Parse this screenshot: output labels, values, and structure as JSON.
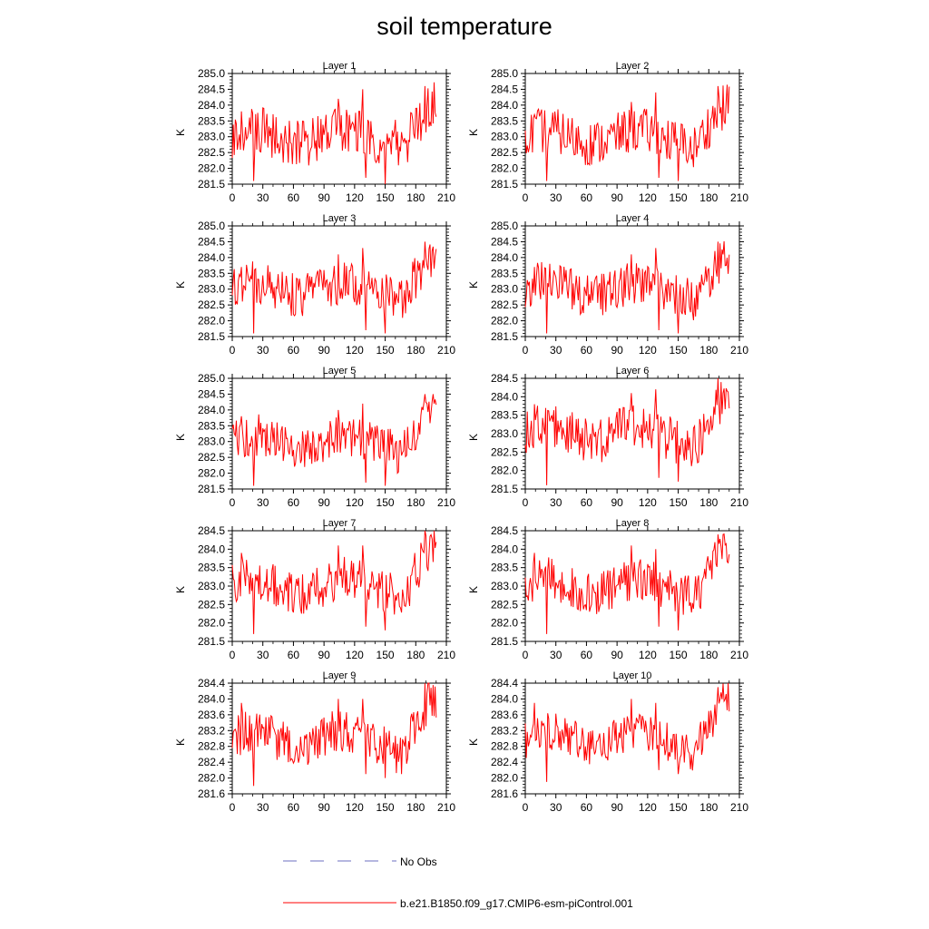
{
  "title": "soil temperature",
  "chart_data": [
    {
      "type": "line",
      "title": "Layer 1",
      "ylabel": "K",
      "xlim": [
        0,
        210
      ],
      "ylim": [
        281.5,
        285.0
      ],
      "xticks": [
        "0",
        "30",
        "60",
        "90",
        "120",
        "150",
        "180",
        "210"
      ],
      "yticks": [
        "281.5",
        "282.0",
        "282.5",
        "283.0",
        "283.5",
        "284.0",
        "284.5",
        "285.0"
      ],
      "series": [
        {
          "name": "b.e21.B1850.f09_g17.CMIP6-esm-piControl.001",
          "base": 283.0,
          "amp": 0.75,
          "spikes": [
            [
              9,
              283.8
            ],
            [
              21,
              281.6
            ],
            [
              104,
              284.2
            ],
            [
              128,
              284.5
            ],
            [
              131,
              281.7
            ],
            [
              150,
              281.5
            ],
            [
              189,
              284.6
            ]
          ]
        }
      ]
    },
    {
      "type": "line",
      "title": "Layer 2",
      "ylabel": "K",
      "xlim": [
        0,
        210
      ],
      "ylim": [
        281.5,
        285.0
      ],
      "xticks": [
        "0",
        "30",
        "60",
        "90",
        "120",
        "150",
        "180",
        "210"
      ],
      "yticks": [
        "281.5",
        "282.0",
        "282.5",
        "283.0",
        "283.5",
        "284.0",
        "284.5",
        "285.0"
      ],
      "series": [
        {
          "name": "b.e21.B1850.f09_g17.CMIP6-esm-piControl.001",
          "base": 283.0,
          "amp": 0.72,
          "spikes": [
            [
              9,
              283.7
            ],
            [
              21,
              281.6
            ],
            [
              104,
              284.1
            ],
            [
              128,
              284.4
            ],
            [
              131,
              281.7
            ],
            [
              150,
              281.6
            ],
            [
              189,
              284.6
            ]
          ]
        }
      ]
    },
    {
      "type": "line",
      "title": "Layer 3",
      "ylabel": "K",
      "xlim": [
        0,
        210
      ],
      "ylim": [
        281.5,
        285.0
      ],
      "xticks": [
        "0",
        "30",
        "60",
        "90",
        "120",
        "150",
        "180",
        "210"
      ],
      "yticks": [
        "281.5",
        "282.0",
        "282.5",
        "283.0",
        "283.5",
        "284.0",
        "284.5",
        "285.0"
      ],
      "series": [
        {
          "name": "b.e21.B1850.f09_g17.CMIP6-esm-piControl.001",
          "base": 283.0,
          "amp": 0.7,
          "spikes": [
            [
              9,
              283.7
            ],
            [
              21,
              281.6
            ],
            [
              104,
              284.1
            ],
            [
              128,
              284.3
            ],
            [
              131,
              281.7
            ],
            [
              150,
              281.6
            ],
            [
              189,
              284.5
            ]
          ]
        }
      ]
    },
    {
      "type": "line",
      "title": "Layer 4",
      "ylabel": "K",
      "xlim": [
        0,
        210
      ],
      "ylim": [
        281.5,
        285.0
      ],
      "xticks": [
        "0",
        "30",
        "60",
        "90",
        "120",
        "150",
        "180",
        "210"
      ],
      "yticks": [
        "281.5",
        "282.0",
        "282.5",
        "283.0",
        "283.5",
        "284.0",
        "284.5",
        "285.0"
      ],
      "series": [
        {
          "name": "b.e21.B1850.f09_g17.CMIP6-esm-piControl.001",
          "base": 283.0,
          "amp": 0.68,
          "spikes": [
            [
              9,
              283.7
            ],
            [
              21,
              281.6
            ],
            [
              104,
              284.1
            ],
            [
              128,
              284.3
            ],
            [
              131,
              281.7
            ],
            [
              150,
              281.6
            ],
            [
              189,
              284.5
            ]
          ]
        }
      ]
    },
    {
      "type": "line",
      "title": "Layer 5",
      "ylabel": "K",
      "xlim": [
        0,
        210
      ],
      "ylim": [
        281.5,
        285.0
      ],
      "xticks": [
        "0",
        "30",
        "60",
        "90",
        "120",
        "150",
        "180",
        "210"
      ],
      "yticks": [
        "281.5",
        "282.0",
        "282.5",
        "283.0",
        "283.5",
        "284.0",
        "284.5",
        "285.0"
      ],
      "series": [
        {
          "name": "b.e21.B1850.f09_g17.CMIP6-esm-piControl.001",
          "base": 283.0,
          "amp": 0.66,
          "spikes": [
            [
              9,
              283.8
            ],
            [
              21,
              281.6
            ],
            [
              104,
              284.0
            ],
            [
              128,
              284.2
            ],
            [
              131,
              281.7
            ],
            [
              150,
              281.6
            ],
            [
              189,
              284.5
            ]
          ]
        }
      ]
    },
    {
      "type": "line",
      "title": "Layer 6",
      "ylabel": "K",
      "xlim": [
        0,
        210
      ],
      "ylim": [
        281.5,
        284.5
      ],
      "xticks": [
        "0",
        "30",
        "60",
        "90",
        "120",
        "150",
        "180",
        "210"
      ],
      "yticks": [
        "281.5",
        "282.0",
        "282.5",
        "283.0",
        "283.5",
        "284.0",
        "284.5"
      ],
      "series": [
        {
          "name": "b.e21.B1850.f09_g17.CMIP6-esm-piControl.001",
          "base": 283.0,
          "amp": 0.62,
          "spikes": [
            [
              9,
              283.8
            ],
            [
              21,
              281.6
            ],
            [
              104,
              284.1
            ],
            [
              128,
              284.2
            ],
            [
              131,
              281.8
            ],
            [
              150,
              281.7
            ],
            [
              189,
              284.5
            ]
          ]
        }
      ]
    },
    {
      "type": "line",
      "title": "Layer 7",
      "ylabel": "K",
      "xlim": [
        0,
        210
      ],
      "ylim": [
        281.5,
        284.5
      ],
      "xticks": [
        "0",
        "30",
        "60",
        "90",
        "120",
        "150",
        "180",
        "210"
      ],
      "yticks": [
        "281.5",
        "282.0",
        "282.5",
        "283.0",
        "283.5",
        "284.0",
        "284.5"
      ],
      "series": [
        {
          "name": "b.e21.B1850.f09_g17.CMIP6-esm-piControl.001",
          "base": 283.0,
          "amp": 0.6,
          "spikes": [
            [
              9,
              283.9
            ],
            [
              21,
              281.7
            ],
            [
              104,
              284.1
            ],
            [
              128,
              284.1
            ],
            [
              131,
              281.9
            ],
            [
              150,
              281.8
            ],
            [
              189,
              284.5
            ]
          ]
        }
      ]
    },
    {
      "type": "line",
      "title": "Layer 8",
      "ylabel": "K",
      "xlim": [
        0,
        210
      ],
      "ylim": [
        281.5,
        284.5
      ],
      "xticks": [
        "0",
        "30",
        "60",
        "90",
        "120",
        "150",
        "180",
        "210"
      ],
      "yticks": [
        "281.5",
        "282.0",
        "282.5",
        "283.0",
        "283.5",
        "284.0",
        "284.5"
      ],
      "series": [
        {
          "name": "b.e21.B1850.f09_g17.CMIP6-esm-piControl.001",
          "base": 283.0,
          "amp": 0.58,
          "spikes": [
            [
              9,
              283.9
            ],
            [
              21,
              281.7
            ],
            [
              104,
              284.1
            ],
            [
              128,
              284.0
            ],
            [
              131,
              281.9
            ],
            [
              150,
              281.8
            ],
            [
              189,
              284.4
            ]
          ]
        }
      ]
    },
    {
      "type": "line",
      "title": "Layer 9",
      "ylabel": "K",
      "xlim": [
        0,
        210
      ],
      "ylim": [
        281.6,
        284.4
      ],
      "xticks": [
        "0",
        "30",
        "60",
        "90",
        "120",
        "150",
        "180",
        "210"
      ],
      "yticks": [
        "281.6",
        "282.0",
        "282.4",
        "282.8",
        "283.2",
        "283.6",
        "284.0",
        "284.4"
      ],
      "series": [
        {
          "name": "b.e21.B1850.f09_g17.CMIP6-esm-piControl.001",
          "base": 283.0,
          "amp": 0.55,
          "spikes": [
            [
              9,
              283.9
            ],
            [
              21,
              281.8
            ],
            [
              104,
              284.0
            ],
            [
              128,
              284.0
            ],
            [
              131,
              282.1
            ],
            [
              150,
              282.0
            ],
            [
              189,
              284.4
            ]
          ]
        }
      ]
    },
    {
      "type": "line",
      "title": "Layer 10",
      "ylabel": "K",
      "xlim": [
        0,
        210
      ],
      "ylim": [
        281.6,
        284.4
      ],
      "xticks": [
        "0",
        "30",
        "60",
        "90",
        "120",
        "150",
        "180",
        "210"
      ],
      "yticks": [
        "281.6",
        "282.0",
        "282.4",
        "282.8",
        "283.2",
        "283.6",
        "284.0",
        "284.4"
      ],
      "series": [
        {
          "name": "b.e21.B1850.f09_g17.CMIP6-esm-piControl.001",
          "base": 283.0,
          "amp": 0.52,
          "spikes": [
            [
              9,
              283.9
            ],
            [
              21,
              281.9
            ],
            [
              104,
              284.0
            ],
            [
              128,
              283.9
            ],
            [
              131,
              282.2
            ],
            [
              150,
              282.1
            ],
            [
              189,
              284.3
            ]
          ]
        }
      ]
    }
  ],
  "legend": {
    "items": [
      {
        "label": "No Obs",
        "color": "#6b6fc0",
        "style": "dashed"
      },
      {
        "label": "b.e21.B1850.f09_g17.CMIP6-esm-piControl.001",
        "color": "#ff0000",
        "style": "solid"
      }
    ]
  },
  "colors": {
    "series": "#ff0000",
    "obs": "#6b6fc0",
    "axis": "#000000"
  }
}
